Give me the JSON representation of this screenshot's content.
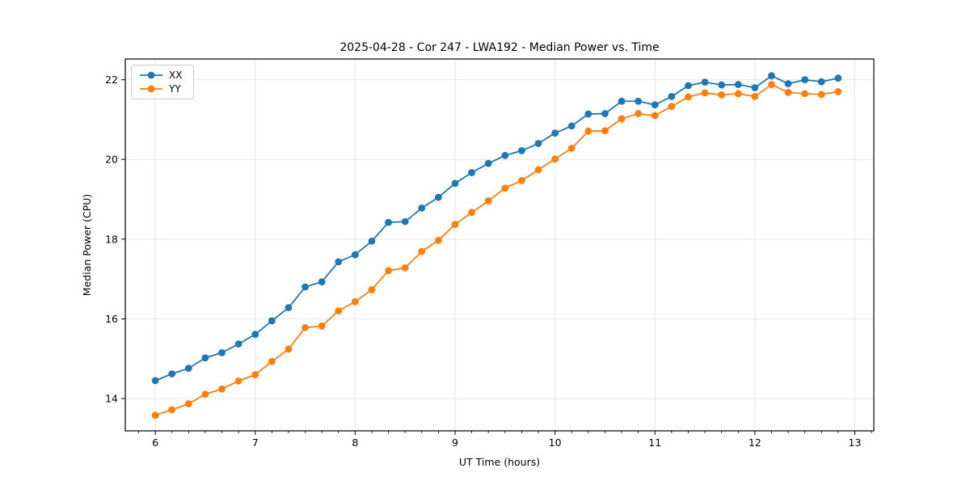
{
  "chart_data": {
    "type": "line",
    "title": "2025-04-28 - Cor 247 - LWA192 - Median Power vs. Time",
    "xlabel": "UT Time (hours)",
    "ylabel": "Median Power (CPU)",
    "xlim": [
      5.7,
      13.19
    ],
    "ylim": [
      13.19,
      22.52
    ],
    "x_major_ticks": [
      6,
      7,
      8,
      9,
      10,
      11,
      12,
      13
    ],
    "x_minor_step": 0.166667,
    "y_major_ticks": [
      14,
      16,
      18,
      20,
      22
    ],
    "grid": true,
    "legend_position": "upper-left",
    "marker": "circle",
    "colors": {
      "xx_series": "#1f77b4",
      "yy_series": "#ff7f0e",
      "gridline": "#e6e6e6",
      "spine": "#000000"
    },
    "x": [
      6.0,
      6.1667,
      6.3333,
      6.5,
      6.6667,
      6.8333,
      7.0,
      7.1667,
      7.3333,
      7.5,
      7.6667,
      7.8333,
      8.0,
      8.1667,
      8.3333,
      8.5,
      8.6667,
      8.8333,
      9.0,
      9.1667,
      9.3333,
      9.5,
      9.6667,
      9.8333,
      10.0,
      10.1667,
      10.3333,
      10.5,
      10.6667,
      10.8333,
      11.0,
      11.1667,
      11.3333,
      11.5,
      11.6667,
      11.8333,
      12.0,
      12.1667,
      12.3333,
      12.5,
      12.6667,
      12.8333
    ],
    "series": [
      {
        "name": "XX",
        "color": "#1f77b4",
        "values": [
          14.45,
          14.62,
          14.76,
          15.02,
          15.15,
          15.37,
          15.61,
          15.95,
          16.28,
          16.8,
          16.93,
          17.43,
          17.61,
          17.95,
          18.42,
          18.44,
          18.78,
          19.05,
          19.4,
          19.67,
          19.9,
          20.1,
          20.22,
          20.4,
          20.66,
          20.84,
          21.14,
          21.15,
          21.46,
          21.46,
          21.37,
          21.58,
          21.85,
          21.94,
          21.87,
          21.88,
          21.8,
          22.1,
          21.9,
          22.0,
          21.95,
          22.04
        ]
      },
      {
        "name": "YY",
        "color": "#ff7f0e",
        "values": [
          13.58,
          13.72,
          13.87,
          14.11,
          14.24,
          14.44,
          14.6,
          14.93,
          15.24,
          15.78,
          15.82,
          16.2,
          16.43,
          16.73,
          17.21,
          17.28,
          17.69,
          17.97,
          18.37,
          18.67,
          18.96,
          19.28,
          19.47,
          19.74,
          20.01,
          20.28,
          20.71,
          20.72,
          21.02,
          21.15,
          21.1,
          21.33,
          21.57,
          21.67,
          21.62,
          21.65,
          21.58,
          21.88,
          21.68,
          21.65,
          21.63,
          21.7
        ]
      }
    ]
  }
}
